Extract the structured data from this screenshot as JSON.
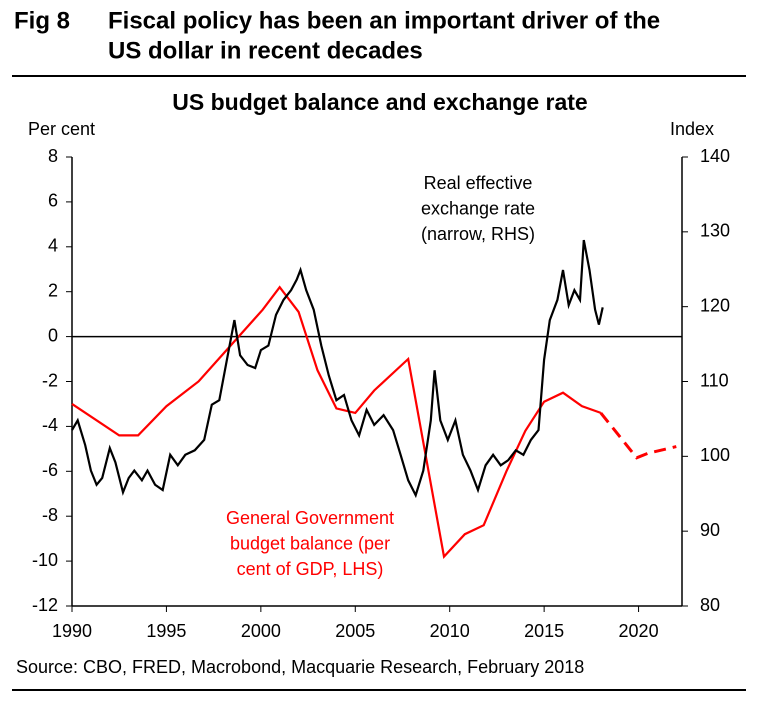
{
  "fig_label": "Fig 8",
  "fig_title": [
    "Fiscal policy has been an important driver of the",
    "US dollar in recent decades"
  ],
  "source": "Source: CBO, FRED, Macrobond, Macquarie Research, February 2018",
  "chart_data": {
    "type": "line",
    "title": "US budget balance and exchange rate",
    "y_label": "Per cent",
    "y2_label": "Index",
    "xlim": [
      1990,
      2022.3
    ],
    "xticks": [
      1990,
      1995,
      2000,
      2005,
      2010,
      2015,
      2020
    ],
    "ylim": [
      -12,
      8
    ],
    "yticks": [
      -12,
      -10,
      -8,
      -6,
      -4,
      -2,
      0,
      2,
      4,
      6,
      8
    ],
    "y2lim": [
      80,
      140
    ],
    "y2ticks": [
      80,
      90,
      100,
      110,
      120,
      130,
      140
    ],
    "zero_line": true,
    "series": [
      {
        "name": [
          "General Government",
          "budget balance (per",
          "cent of GDP, LHS)"
        ],
        "color": "#ff0000",
        "dash": false,
        "x": [
          1990,
          1992.5,
          1993.5,
          1995,
          1996.7,
          2000.1,
          2001,
          2002,
          2003,
          2004,
          2005,
          2006,
          2007.8,
          2009.7,
          2010.8,
          2011.8,
          2013,
          2014,
          2015,
          2016,
          2017,
          2018
        ],
        "values": [
          -3.0,
          -4.4,
          -4.4,
          -3.1,
          -2.0,
          1.2,
          2.2,
          1.1,
          -1.5,
          -3.2,
          -3.4,
          -2.4,
          -1.0,
          -9.8,
          -8.8,
          -8.4,
          -6.0,
          -4.2,
          -2.9,
          -2.5,
          -3.1,
          -3.4
        ]
      },
      {
        "color": "#ff0000",
        "dash": true,
        "x": [
          2018,
          2019.9,
          2020.5,
          2022
        ],
        "values": [
          -3.4,
          -5.4,
          -5.2,
          -4.9
        ]
      },
      {
        "name": [
          "Real effective",
          "exchange rate",
          "(narrow, RHS)"
        ],
        "color": "#000000",
        "dash": false,
        "axis": "y2",
        "x": [
          1990.0,
          1990.3,
          1990.7,
          1991.0,
          1991.3,
          1991.6,
          1992.0,
          1992.3,
          1992.7,
          1993.0,
          1993.3,
          1993.7,
          1994.0,
          1994.4,
          1994.8,
          1995.2,
          1995.6,
          1996.0,
          1996.5,
          1997.0,
          1997.4,
          1997.8,
          1998.2,
          1998.6,
          1998.9,
          1999.3,
          1999.7,
          2000.0,
          2000.4,
          2000.8,
          2001.2,
          2001.6,
          2001.9,
          2002.1,
          2002.4,
          2002.8,
          2003.2,
          2003.6,
          2004.0,
          2004.4,
          2004.8,
          2005.2,
          2005.6,
          2006.0,
          2006.5,
          2007.0,
          2007.4,
          2007.8,
          2008.2,
          2008.6,
          2009.0,
          2009.2,
          2009.5,
          2009.9,
          2010.3,
          2010.7,
          2011.1,
          2011.5,
          2011.9,
          2012.3,
          2012.7,
          2013.1,
          2013.5,
          2013.9,
          2014.3,
          2014.7,
          2015.0,
          2015.3,
          2015.7,
          2016.0,
          2016.3,
          2016.6,
          2016.9,
          2017.1,
          2017.4,
          2017.7,
          2017.9,
          2018.1
        ],
        "values": [
          103.5,
          104.8,
          101.5,
          98.1,
          96.2,
          97.1,
          101.1,
          99.2,
          95.2,
          97.1,
          98.1,
          96.8,
          98.1,
          96.2,
          95.5,
          100.2,
          98.8,
          100.2,
          100.8,
          102.2,
          106.9,
          107.5,
          112.9,
          118.2,
          113.5,
          112.2,
          111.8,
          114.2,
          114.8,
          118.9,
          120.9,
          122.2,
          123.6,
          124.9,
          122.2,
          119.6,
          114.8,
          110.8,
          107.5,
          108.2,
          104.8,
          102.8,
          106.2,
          104.2,
          105.5,
          103.5,
          100.2,
          96.8,
          94.8,
          98.1,
          104.8,
          111.5,
          104.8,
          102.2,
          104.8,
          100.2,
          98.1,
          95.5,
          98.8,
          100.2,
          98.8,
          99.5,
          100.8,
          100.2,
          102.2,
          103.5,
          112.9,
          118.2,
          120.9,
          124.9,
          120.2,
          122.2,
          120.9,
          128.9,
          124.9,
          119.6,
          117.6,
          119.9
        ]
      }
    ]
  }
}
